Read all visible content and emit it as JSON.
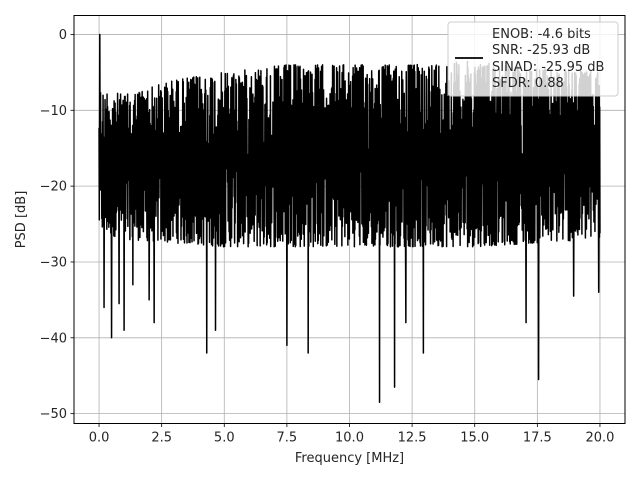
{
  "chart_data": {
    "type": "line",
    "title": "",
    "xlabel": "Frequency [MHz]",
    "ylabel": "PSD [dB]",
    "xlim": [
      -1,
      21
    ],
    "ylim": [
      -51.3,
      2.5
    ],
    "xticks": [
      0.0,
      2.5,
      5.0,
      7.5,
      10.0,
      12.5,
      15.0,
      17.5,
      20.0
    ],
    "xtick_labels": [
      "0.0",
      "2.5",
      "5.0",
      "7.5",
      "10.0",
      "12.5",
      "15.0",
      "17.5",
      "20.0"
    ],
    "yticks": [
      0,
      -10,
      -20,
      -30,
      -40,
      -50
    ],
    "ytick_labels": [
      "0",
      "−10",
      "−20",
      "−30",
      "−40",
      "−50"
    ],
    "grid": true,
    "legend_position": "top-right",
    "color": "#000000",
    "series": [
      {
        "x_range": [
          0.0,
          20.0
        ],
        "points": 2000,
        "peak": {
          "x": 0.03,
          "y": 0.0
        },
        "upper_envelope": {
          "x": [
            0.0,
            1.0,
            3.0,
            5.0,
            7.5,
            10.0,
            12.5,
            15.0,
            17.5,
            20.0
          ],
          "y": [
            -7,
            -8,
            -6,
            -5,
            -4,
            -4,
            -4,
            -3.5,
            -4.5,
            -5
          ]
        },
        "lower_envelope": {
          "x": [
            0.0,
            1.0,
            5.0,
            10.0,
            15.0,
            20.0
          ],
          "y": [
            -26,
            -27,
            -28,
            -28,
            -28,
            -27
          ]
        },
        "notable_dips": [
          {
            "x": 0.2,
            "y": -36.0
          },
          {
            "x": 0.5,
            "y": -40.0
          },
          {
            "x": 0.8,
            "y": -35.5
          },
          {
            "x": 1.0,
            "y": -39.0
          },
          {
            "x": 1.35,
            "y": -33.0
          },
          {
            "x": 2.0,
            "y": -35.0
          },
          {
            "x": 2.2,
            "y": -38.0
          },
          {
            "x": 4.3,
            "y": -42.0
          },
          {
            "x": 4.65,
            "y": -39.0
          },
          {
            "x": 7.5,
            "y": -41.0
          },
          {
            "x": 8.35,
            "y": -42.0
          },
          {
            "x": 11.2,
            "y": -48.5
          },
          {
            "x": 11.8,
            "y": -46.5
          },
          {
            "x": 12.25,
            "y": -38.0
          },
          {
            "x": 12.95,
            "y": -42.0
          },
          {
            "x": 17.05,
            "y": -38.0
          },
          {
            "x": 17.55,
            "y": -45.5
          },
          {
            "x": 18.95,
            "y": -34.5
          },
          {
            "x": 19.95,
            "y": -34.0
          }
        ]
      }
    ],
    "legend": {
      "swatch": "black-line",
      "lines": [
        "ENOB: -4.6 bits",
        "SNR: -25.93 dB",
        "SINAD: -25.95 dB",
        "SFDR: 0.88"
      ]
    }
  }
}
